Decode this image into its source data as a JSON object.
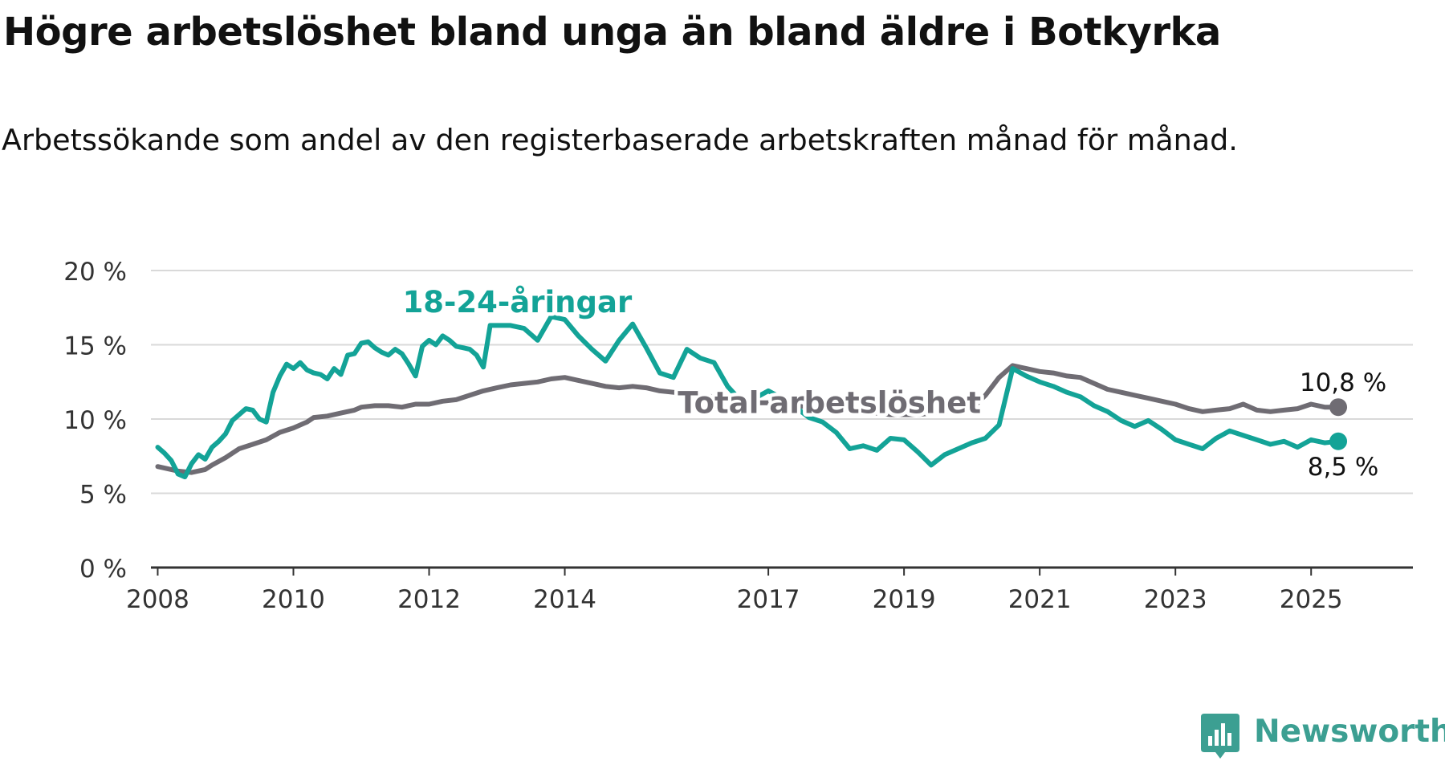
{
  "title": "Högre arbetslöshet bland unga än bland äldre i Botkyrka",
  "subtitle": "Arbetssökande som andel av den registerbaserade arbetskraften månad för månad.",
  "brand": {
    "name": "Newsworthy",
    "color": "#3c9f92",
    "logo_icon": "newsworthy-chart-logo-icon"
  },
  "chart_data": {
    "type": "line",
    "title": "",
    "xlabel": "",
    "ylabel": "",
    "ylim": [
      0,
      20
    ],
    "xlim": [
      2007.9,
      2026.5
    ],
    "yticks": [
      {
        "value": 0,
        "label": "0 %"
      },
      {
        "value": 5,
        "label": "5 %"
      },
      {
        "value": 10,
        "label": "10 %"
      },
      {
        "value": 15,
        "label": "15 %"
      },
      {
        "value": 20,
        "label": "20 %"
      }
    ],
    "xticks": [
      {
        "value": 2008,
        "label": "2008"
      },
      {
        "value": 2010,
        "label": "2010"
      },
      {
        "value": 2012,
        "label": "2012"
      },
      {
        "value": 2014,
        "label": "2014"
      },
      {
        "value": 2017,
        "label": "2017"
      },
      {
        "value": 2019,
        "label": "2019"
      },
      {
        "value": 2021,
        "label": "2021"
      },
      {
        "value": 2023,
        "label": "2023"
      },
      {
        "value": 2025,
        "label": "2025"
      }
    ],
    "grid": true,
    "legend": "none",
    "series": [
      {
        "name": "Total arbetslöshet",
        "color": "#6f6c73",
        "label_position": [
          2017.9,
          10.4
        ],
        "end_label": "10,8 %",
        "points": [
          [
            2008.0,
            6.8
          ],
          [
            2008.3,
            6.5
          ],
          [
            2008.5,
            6.4
          ],
          [
            2008.7,
            6.6
          ],
          [
            2008.8,
            6.9
          ],
          [
            2009.0,
            7.4
          ],
          [
            2009.2,
            8.0
          ],
          [
            2009.4,
            8.3
          ],
          [
            2009.6,
            8.6
          ],
          [
            2009.8,
            9.1
          ],
          [
            2010.0,
            9.4
          ],
          [
            2010.2,
            9.8
          ],
          [
            2010.3,
            10.1
          ],
          [
            2010.5,
            10.2
          ],
          [
            2010.7,
            10.4
          ],
          [
            2010.9,
            10.6
          ],
          [
            2011.0,
            10.8
          ],
          [
            2011.2,
            10.9
          ],
          [
            2011.4,
            10.9
          ],
          [
            2011.6,
            10.8
          ],
          [
            2011.8,
            11.0
          ],
          [
            2012.0,
            11.0
          ],
          [
            2012.2,
            11.2
          ],
          [
            2012.4,
            11.3
          ],
          [
            2012.6,
            11.6
          ],
          [
            2012.8,
            11.9
          ],
          [
            2013.0,
            12.1
          ],
          [
            2013.2,
            12.3
          ],
          [
            2013.4,
            12.4
          ],
          [
            2013.6,
            12.5
          ],
          [
            2013.8,
            12.7
          ],
          [
            2014.0,
            12.8
          ],
          [
            2014.2,
            12.6
          ],
          [
            2014.4,
            12.4
          ],
          [
            2014.6,
            12.2
          ],
          [
            2014.8,
            12.1
          ],
          [
            2015.0,
            12.2
          ],
          [
            2015.2,
            12.1
          ],
          [
            2015.4,
            11.9
          ],
          [
            2015.6,
            11.8
          ],
          [
            2015.8,
            11.7
          ],
          [
            2016.0,
            11.6
          ],
          [
            2016.2,
            11.5
          ],
          [
            2016.4,
            11.3
          ],
          [
            2016.6,
            11.2
          ],
          [
            2016.8,
            11.1
          ],
          [
            2017.0,
            11.1
          ],
          [
            2017.2,
            10.9
          ],
          [
            2017.4,
            10.9
          ],
          [
            2017.6,
            10.8
          ],
          [
            2018.0,
            10.6
          ],
          [
            2018.4,
            10.5
          ],
          [
            2018.8,
            10.3
          ],
          [
            2019.2,
            10.3
          ],
          [
            2019.6,
            10.5
          ],
          [
            2020.0,
            10.7
          ],
          [
            2020.2,
            11.6
          ],
          [
            2020.4,
            12.8
          ],
          [
            2020.6,
            13.6
          ],
          [
            2020.8,
            13.4
          ],
          [
            2021.0,
            13.2
          ],
          [
            2021.2,
            13.1
          ],
          [
            2021.4,
            12.9
          ],
          [
            2021.6,
            12.8
          ],
          [
            2021.8,
            12.4
          ],
          [
            2022.0,
            12.0
          ],
          [
            2022.2,
            11.8
          ],
          [
            2022.4,
            11.6
          ],
          [
            2022.6,
            11.4
          ],
          [
            2022.8,
            11.2
          ],
          [
            2023.0,
            11.0
          ],
          [
            2023.2,
            10.7
          ],
          [
            2023.4,
            10.5
          ],
          [
            2023.6,
            10.6
          ],
          [
            2023.8,
            10.7
          ],
          [
            2024.0,
            11.0
          ],
          [
            2024.2,
            10.6
          ],
          [
            2024.4,
            10.5
          ],
          [
            2024.6,
            10.6
          ],
          [
            2024.8,
            10.7
          ],
          [
            2025.0,
            11.0
          ],
          [
            2025.2,
            10.8
          ],
          [
            2025.4,
            10.8
          ]
        ]
      },
      {
        "name": "18-24-åringar",
        "color": "#13a397",
        "label_position": [
          2013.3,
          17.2
        ],
        "end_label": "8,5 %",
        "points": [
          [
            2008.0,
            8.1
          ],
          [
            2008.1,
            7.7
          ],
          [
            2008.2,
            7.2
          ],
          [
            2008.3,
            6.3
          ],
          [
            2008.4,
            6.1
          ],
          [
            2008.5,
            7.0
          ],
          [
            2008.6,
            7.6
          ],
          [
            2008.7,
            7.3
          ],
          [
            2008.8,
            8.1
          ],
          [
            2008.9,
            8.5
          ],
          [
            2009.0,
            9.0
          ],
          [
            2009.1,
            9.9
          ],
          [
            2009.2,
            10.3
          ],
          [
            2009.3,
            10.7
          ],
          [
            2009.4,
            10.6
          ],
          [
            2009.5,
            10.0
          ],
          [
            2009.6,
            9.8
          ],
          [
            2009.7,
            11.8
          ],
          [
            2009.8,
            12.9
          ],
          [
            2009.9,
            13.7
          ],
          [
            2010.0,
            13.4
          ],
          [
            2010.1,
            13.8
          ],
          [
            2010.2,
            13.3
          ],
          [
            2010.3,
            13.1
          ],
          [
            2010.4,
            13.0
          ],
          [
            2010.5,
            12.7
          ],
          [
            2010.6,
            13.4
          ],
          [
            2010.7,
            13.0
          ],
          [
            2010.8,
            14.3
          ],
          [
            2010.9,
            14.4
          ],
          [
            2011.0,
            15.1
          ],
          [
            2011.1,
            15.2
          ],
          [
            2011.2,
            14.8
          ],
          [
            2011.3,
            14.5
          ],
          [
            2011.4,
            14.3
          ],
          [
            2011.5,
            14.7
          ],
          [
            2011.6,
            14.4
          ],
          [
            2011.7,
            13.7
          ],
          [
            2011.8,
            12.9
          ],
          [
            2011.9,
            14.9
          ],
          [
            2012.0,
            15.3
          ],
          [
            2012.1,
            15.0
          ],
          [
            2012.2,
            15.6
          ],
          [
            2012.3,
            15.3
          ],
          [
            2012.4,
            14.9
          ],
          [
            2012.5,
            14.8
          ],
          [
            2012.6,
            14.7
          ],
          [
            2012.7,
            14.3
          ],
          [
            2012.8,
            13.5
          ],
          [
            2012.9,
            16.3
          ],
          [
            2013.2,
            16.3
          ],
          [
            2013.4,
            16.1
          ],
          [
            2013.6,
            15.3
          ],
          [
            2013.8,
            16.9
          ],
          [
            2014.0,
            16.7
          ],
          [
            2014.2,
            15.6
          ],
          [
            2014.4,
            14.7
          ],
          [
            2014.6,
            13.9
          ],
          [
            2014.8,
            15.3
          ],
          [
            2015.0,
            16.4
          ],
          [
            2015.2,
            14.8
          ],
          [
            2015.4,
            13.1
          ],
          [
            2015.6,
            12.8
          ],
          [
            2015.8,
            14.7
          ],
          [
            2016.0,
            14.1
          ],
          [
            2016.2,
            13.8
          ],
          [
            2016.4,
            12.2
          ],
          [
            2016.6,
            11.2
          ],
          [
            2016.8,
            11.4
          ],
          [
            2017.0,
            11.9
          ],
          [
            2017.2,
            11.4
          ],
          [
            2017.4,
            10.8
          ],
          [
            2017.6,
            10.1
          ],
          [
            2017.8,
            9.8
          ],
          [
            2018.0,
            9.1
          ],
          [
            2018.2,
            8.0
          ],
          [
            2018.4,
            8.2
          ],
          [
            2018.6,
            7.9
          ],
          [
            2018.8,
            8.7
          ],
          [
            2019.0,
            8.6
          ],
          [
            2019.2,
            7.8
          ],
          [
            2019.4,
            6.9
          ],
          [
            2019.6,
            7.6
          ],
          [
            2019.8,
            8.0
          ],
          [
            2020.0,
            8.4
          ],
          [
            2020.2,
            8.7
          ],
          [
            2020.4,
            9.6
          ],
          [
            2020.6,
            13.4
          ],
          [
            2020.8,
            12.9
          ],
          [
            2021.0,
            12.5
          ],
          [
            2021.2,
            12.2
          ],
          [
            2021.4,
            11.8
          ],
          [
            2021.6,
            11.5
          ],
          [
            2021.8,
            10.9
          ],
          [
            2022.0,
            10.5
          ],
          [
            2022.2,
            9.9
          ],
          [
            2022.4,
            9.5
          ],
          [
            2022.6,
            9.9
          ],
          [
            2022.8,
            9.3
          ],
          [
            2023.0,
            8.6
          ],
          [
            2023.2,
            8.3
          ],
          [
            2023.4,
            8.0
          ],
          [
            2023.6,
            8.7
          ],
          [
            2023.8,
            9.2
          ],
          [
            2024.0,
            8.9
          ],
          [
            2024.2,
            8.6
          ],
          [
            2024.4,
            8.3
          ],
          [
            2024.6,
            8.5
          ],
          [
            2024.8,
            8.1
          ],
          [
            2025.0,
            8.6
          ],
          [
            2025.2,
            8.4
          ],
          [
            2025.4,
            8.5
          ]
        ]
      }
    ]
  }
}
